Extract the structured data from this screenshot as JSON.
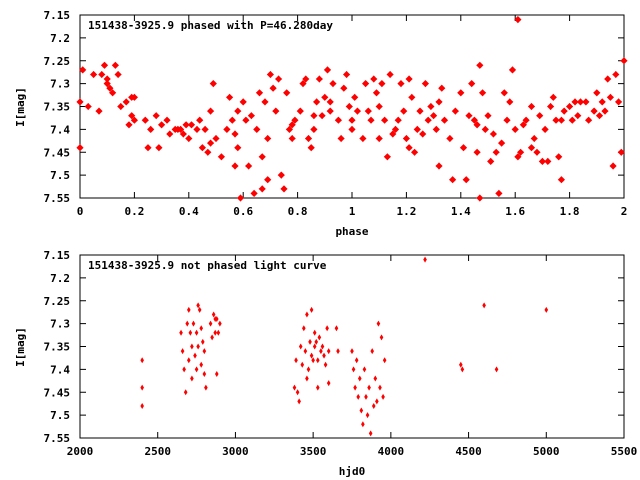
{
  "chart_data": [
    {
      "type": "scatter",
      "title": "151438-3925.9 phased with P=46.280day",
      "xlabel": "phase",
      "ylabel": "I[mag]",
      "xlim": [
        0,
        2
      ],
      "ylim": [
        7.55,
        7.15
      ],
      "y_inverted": true,
      "xticks": [
        "0",
        "0.2",
        "0.4",
        "0.6",
        "0.8",
        "1",
        "1.2",
        "1.4",
        "1.6",
        "1.8",
        "2"
      ],
      "xtick_values": [
        0,
        0.2,
        0.4,
        0.6,
        0.8,
        1.0,
        1.2,
        1.4,
        1.6,
        1.8,
        2.0
      ],
      "yticks": [
        "7.15",
        "7.2",
        "7.25",
        "7.3",
        "7.35",
        "7.4",
        "7.45",
        "7.5",
        "7.55"
      ],
      "ytick_values": [
        7.15,
        7.2,
        7.25,
        7.3,
        7.35,
        7.4,
        7.45,
        7.5,
        7.55
      ],
      "grid": false,
      "marker": "filled-star",
      "color": "#ff0000",
      "points": [
        [
          0.0,
          7.34
        ],
        [
          0.0,
          7.44
        ],
        [
          0.01,
          7.27
        ],
        [
          0.03,
          7.35
        ],
        [
          0.05,
          7.28
        ],
        [
          0.07,
          7.36
        ],
        [
          0.08,
          7.28
        ],
        [
          0.09,
          7.26
        ],
        [
          0.1,
          7.3
        ],
        [
          0.1,
          7.29
        ],
        [
          0.11,
          7.31
        ],
        [
          0.12,
          7.32
        ],
        [
          0.13,
          7.26
        ],
        [
          0.14,
          7.28
        ],
        [
          0.15,
          7.35
        ],
        [
          0.17,
          7.34
        ],
        [
          0.18,
          7.39
        ],
        [
          0.19,
          7.33
        ],
        [
          0.19,
          7.37
        ],
        [
          0.2,
          7.38
        ],
        [
          0.2,
          7.33
        ],
        [
          0.24,
          7.38
        ],
        [
          0.25,
          7.44
        ],
        [
          0.26,
          7.4
        ],
        [
          0.28,
          7.37
        ],
        [
          0.29,
          7.44
        ],
        [
          0.3,
          7.39
        ],
        [
          0.32,
          7.38
        ],
        [
          0.33,
          7.41
        ],
        [
          0.35,
          7.4
        ],
        [
          0.36,
          7.4
        ],
        [
          0.37,
          7.4
        ],
        [
          0.38,
          7.41
        ],
        [
          0.39,
          7.39
        ],
        [
          0.4,
          7.42
        ],
        [
          0.41,
          7.39
        ],
        [
          0.43,
          7.4
        ],
        [
          0.44,
          7.38
        ],
        [
          0.45,
          7.44
        ],
        [
          0.46,
          7.4
        ],
        [
          0.47,
          7.45
        ],
        [
          0.48,
          7.43
        ],
        [
          0.48,
          7.36
        ],
        [
          0.49,
          7.3
        ],
        [
          0.5,
          7.42
        ],
        [
          0.52,
          7.46
        ],
        [
          0.54,
          7.4
        ],
        [
          0.55,
          7.33
        ],
        [
          0.56,
          7.38
        ],
        [
          0.57,
          7.48
        ],
        [
          0.57,
          7.41
        ],
        [
          0.58,
          7.44
        ],
        [
          0.58,
          7.36
        ],
        [
          0.59,
          7.55
        ],
        [
          0.6,
          7.34
        ],
        [
          0.61,
          7.38
        ],
        [
          0.62,
          7.48
        ],
        [
          0.63,
          7.37
        ],
        [
          0.64,
          7.54
        ],
        [
          0.65,
          7.4
        ],
        [
          0.66,
          7.32
        ],
        [
          0.67,
          7.53
        ],
        [
          0.67,
          7.46
        ],
        [
          0.68,
          7.34
        ],
        [
          0.69,
          7.51
        ],
        [
          0.69,
          7.42
        ],
        [
          0.7,
          7.28
        ],
        [
          0.71,
          7.31
        ],
        [
          0.72,
          7.36
        ],
        [
          0.73,
          7.29
        ],
        [
          0.74,
          7.5
        ],
        [
          0.75,
          7.53
        ],
        [
          0.76,
          7.32
        ],
        [
          0.77,
          7.4
        ],
        [
          0.78,
          7.42
        ],
        [
          0.78,
          7.39
        ],
        [
          0.79,
          7.38
        ],
        [
          0.81,
          7.36
        ],
        [
          0.82,
          7.3
        ],
        [
          0.83,
          7.29
        ],
        [
          0.84,
          7.42
        ],
        [
          0.85,
          7.44
        ],
        [
          0.86,
          7.4
        ],
        [
          0.86,
          7.37
        ],
        [
          0.87,
          7.34
        ],
        [
          0.88,
          7.29
        ],
        [
          0.89,
          7.37
        ],
        [
          0.9,
          7.33
        ],
        [
          0.91,
          7.27
        ],
        [
          0.92,
          7.34
        ],
        [
          0.92,
          7.36
        ],
        [
          0.93,
          7.3
        ],
        [
          0.95,
          7.38
        ],
        [
          0.96,
          7.42
        ],
        [
          0.97,
          7.31
        ],
        [
          0.98,
          7.28
        ],
        [
          0.99,
          7.35
        ],
        [
          1.0,
          7.38
        ],
        [
          1.0,
          7.4
        ],
        [
          1.01,
          7.33
        ],
        [
          1.02,
          7.36
        ],
        [
          1.04,
          7.42
        ],
        [
          1.05,
          7.3
        ],
        [
          1.06,
          7.36
        ],
        [
          1.07,
          7.38
        ],
        [
          1.08,
          7.29
        ],
        [
          1.09,
          7.32
        ],
        [
          1.1,
          7.42
        ],
        [
          1.1,
          7.35
        ],
        [
          1.11,
          7.3
        ],
        [
          1.12,
          7.38
        ],
        [
          1.13,
          7.46
        ],
        [
          1.14,
          7.28
        ],
        [
          1.15,
          7.41
        ],
        [
          1.16,
          7.4
        ],
        [
          1.17,
          7.38
        ],
        [
          1.18,
          7.3
        ],
        [
          1.19,
          7.36
        ],
        [
          1.2,
          7.42
        ],
        [
          1.21,
          7.29
        ],
        [
          1.21,
          7.44
        ],
        [
          1.22,
          7.33
        ],
        [
          1.23,
          7.45
        ],
        [
          1.24,
          7.4
        ],
        [
          1.25,
          7.36
        ],
        [
          1.26,
          7.41
        ],
        [
          1.27,
          7.3
        ],
        [
          1.28,
          7.38
        ],
        [
          1.29,
          7.35
        ],
        [
          1.3,
          7.37
        ],
        [
          1.31,
          7.4
        ],
        [
          1.32,
          7.48
        ],
        [
          1.32,
          7.34
        ],
        [
          1.33,
          7.31
        ],
        [
          1.34,
          7.38
        ],
        [
          1.36,
          7.42
        ],
        [
          1.37,
          7.51
        ],
        [
          1.38,
          7.36
        ],
        [
          1.4,
          7.32
        ],
        [
          1.41,
          7.44
        ],
        [
          1.42,
          7.51
        ],
        [
          1.43,
          7.37
        ],
        [
          1.44,
          7.3
        ],
        [
          1.45,
          7.38
        ],
        [
          1.46,
          7.39
        ],
        [
          1.46,
          7.45
        ],
        [
          1.47,
          7.26
        ],
        [
          1.47,
          7.55
        ],
        [
          1.48,
          7.32
        ],
        [
          1.49,
          7.4
        ],
        [
          1.5,
          7.37
        ],
        [
          1.51,
          7.47
        ],
        [
          1.52,
          7.41
        ],
        [
          1.53,
          7.45
        ],
        [
          1.54,
          7.54
        ],
        [
          1.55,
          7.43
        ],
        [
          1.56,
          7.32
        ],
        [
          1.57,
          7.38
        ],
        [
          1.58,
          7.34
        ],
        [
          1.59,
          7.27
        ],
        [
          1.6,
          7.4
        ],
        [
          1.61,
          7.46
        ],
        [
          1.61,
          7.16
        ],
        [
          1.62,
          7.45
        ],
        [
          1.63,
          7.39
        ],
        [
          1.64,
          7.38
        ],
        [
          1.66,
          7.35
        ],
        [
          1.66,
          7.44
        ],
        [
          1.67,
          7.42
        ],
        [
          1.68,
          7.45
        ],
        [
          1.69,
          7.37
        ],
        [
          1.7,
          7.47
        ],
        [
          1.71,
          7.4
        ],
        [
          1.72,
          7.47
        ],
        [
          1.73,
          7.35
        ],
        [
          1.74,
          7.33
        ],
        [
          1.75,
          7.38
        ],
        [
          1.76,
          7.46
        ],
        [
          1.77,
          7.38
        ],
        [
          1.77,
          7.51
        ],
        [
          1.78,
          7.36
        ],
        [
          1.8,
          7.35
        ],
        [
          1.81,
          7.38
        ],
        [
          1.82,
          7.34
        ],
        [
          1.83,
          7.37
        ],
        [
          1.84,
          7.34
        ],
        [
          1.86,
          7.34
        ],
        [
          1.87,
          7.38
        ],
        [
          1.89,
          7.36
        ],
        [
          1.9,
          7.32
        ],
        [
          1.91,
          7.37
        ],
        [
          1.92,
          7.34
        ],
        [
          1.93,
          7.36
        ],
        [
          1.94,
          7.29
        ],
        [
          1.95,
          7.33
        ],
        [
          1.96,
          7.48
        ],
        [
          1.97,
          7.28
        ],
        [
          1.98,
          7.34
        ],
        [
          1.99,
          7.45
        ],
        [
          2.0,
          7.25
        ]
      ]
    },
    {
      "type": "scatter",
      "title": "151438-3925.9 not phased light curve",
      "xlabel": "hjd0",
      "ylabel": "I[mag]",
      "xlim": [
        2000,
        5500
      ],
      "ylim": [
        7.55,
        7.15
      ],
      "y_inverted": true,
      "xticks": [
        "2000",
        "2500",
        "3000",
        "3500",
        "4000",
        "4500",
        "5000",
        "5500"
      ],
      "xtick_values": [
        2000,
        2500,
        3000,
        3500,
        4000,
        4500,
        5000,
        5500
      ],
      "yticks": [
        "7.15",
        "7.2",
        "7.25",
        "7.3",
        "7.35",
        "7.4",
        "7.45",
        "7.5",
        "7.55"
      ],
      "ytick_values": [
        7.15,
        7.2,
        7.25,
        7.3,
        7.35,
        7.4,
        7.45,
        7.5,
        7.55
      ],
      "grid": false,
      "marker": "diamond",
      "color": "#ff0000",
      "points": [
        [
          2400,
          7.38
        ],
        [
          2400,
          7.44
        ],
        [
          2400,
          7.48
        ],
        [
          2650,
          7.32
        ],
        [
          2660,
          7.36
        ],
        [
          2670,
          7.4
        ],
        [
          2680,
          7.45
        ],
        [
          2690,
          7.3
        ],
        [
          2700,
          7.27
        ],
        [
          2700,
          7.38
        ],
        [
          2710,
          7.32
        ],
        [
          2720,
          7.42
        ],
        [
          2720,
          7.35
        ],
        [
          2730,
          7.3
        ],
        [
          2740,
          7.37
        ],
        [
          2750,
          7.4
        ],
        [
          2750,
          7.32
        ],
        [
          2760,
          7.26
        ],
        [
          2760,
          7.35
        ],
        [
          2770,
          7.27
        ],
        [
          2780,
          7.31
        ],
        [
          2780,
          7.39
        ],
        [
          2790,
          7.34
        ],
        [
          2800,
          7.41
        ],
        [
          2800,
          7.36
        ],
        [
          2810,
          7.44
        ],
        [
          2840,
          7.3
        ],
        [
          2850,
          7.33
        ],
        [
          2860,
          7.28
        ],
        [
          2870,
          7.32
        ],
        [
          2870,
          7.29
        ],
        [
          2880,
          7.41
        ],
        [
          2880,
          7.29
        ],
        [
          2890,
          7.32
        ],
        [
          2900,
          7.3
        ],
        [
          3380,
          7.44
        ],
        [
          3390,
          7.38
        ],
        [
          3400,
          7.45
        ],
        [
          3410,
          7.47
        ],
        [
          3420,
          7.35
        ],
        [
          3430,
          7.39
        ],
        [
          3440,
          7.31
        ],
        [
          3450,
          7.36
        ],
        [
          3460,
          7.42
        ],
        [
          3460,
          7.28
        ],
        [
          3470,
          7.4
        ],
        [
          3480,
          7.34
        ],
        [
          3490,
          7.27
        ],
        [
          3490,
          7.37
        ],
        [
          3500,
          7.38
        ],
        [
          3510,
          7.32
        ],
        [
          3510,
          7.35
        ],
        [
          3520,
          7.34
        ],
        [
          3530,
          7.44
        ],
        [
          3530,
          7.38
        ],
        [
          3540,
          7.33
        ],
        [
          3550,
          7.36
        ],
        [
          3560,
          7.35
        ],
        [
          3570,
          7.37
        ],
        [
          3580,
          7.39
        ],
        [
          3590,
          7.31
        ],
        [
          3600,
          7.36
        ],
        [
          3600,
          7.43
        ],
        [
          3650,
          7.31
        ],
        [
          3660,
          7.36
        ],
        [
          3750,
          7.36
        ],
        [
          3760,
          7.4
        ],
        [
          3770,
          7.44
        ],
        [
          3780,
          7.38
        ],
        [
          3790,
          7.46
        ],
        [
          3800,
          7.42
        ],
        [
          3810,
          7.49
        ],
        [
          3820,
          7.52
        ],
        [
          3830,
          7.4
        ],
        [
          3840,
          7.46
        ],
        [
          3850,
          7.5
        ],
        [
          3860,
          7.44
        ],
        [
          3870,
          7.54
        ],
        [
          3880,
          7.36
        ],
        [
          3890,
          7.48
        ],
        [
          3900,
          7.42
        ],
        [
          3910,
          7.47
        ],
        [
          3920,
          7.3
        ],
        [
          3930,
          7.44
        ],
        [
          3940,
          7.33
        ],
        [
          3950,
          7.46
        ],
        [
          3960,
          7.38
        ],
        [
          4220,
          7.16
        ],
        [
          4450,
          7.39
        ],
        [
          4460,
          7.4
        ],
        [
          4600,
          7.26
        ],
        [
          4680,
          7.4
        ],
        [
          5000,
          7.27
        ]
      ]
    }
  ]
}
